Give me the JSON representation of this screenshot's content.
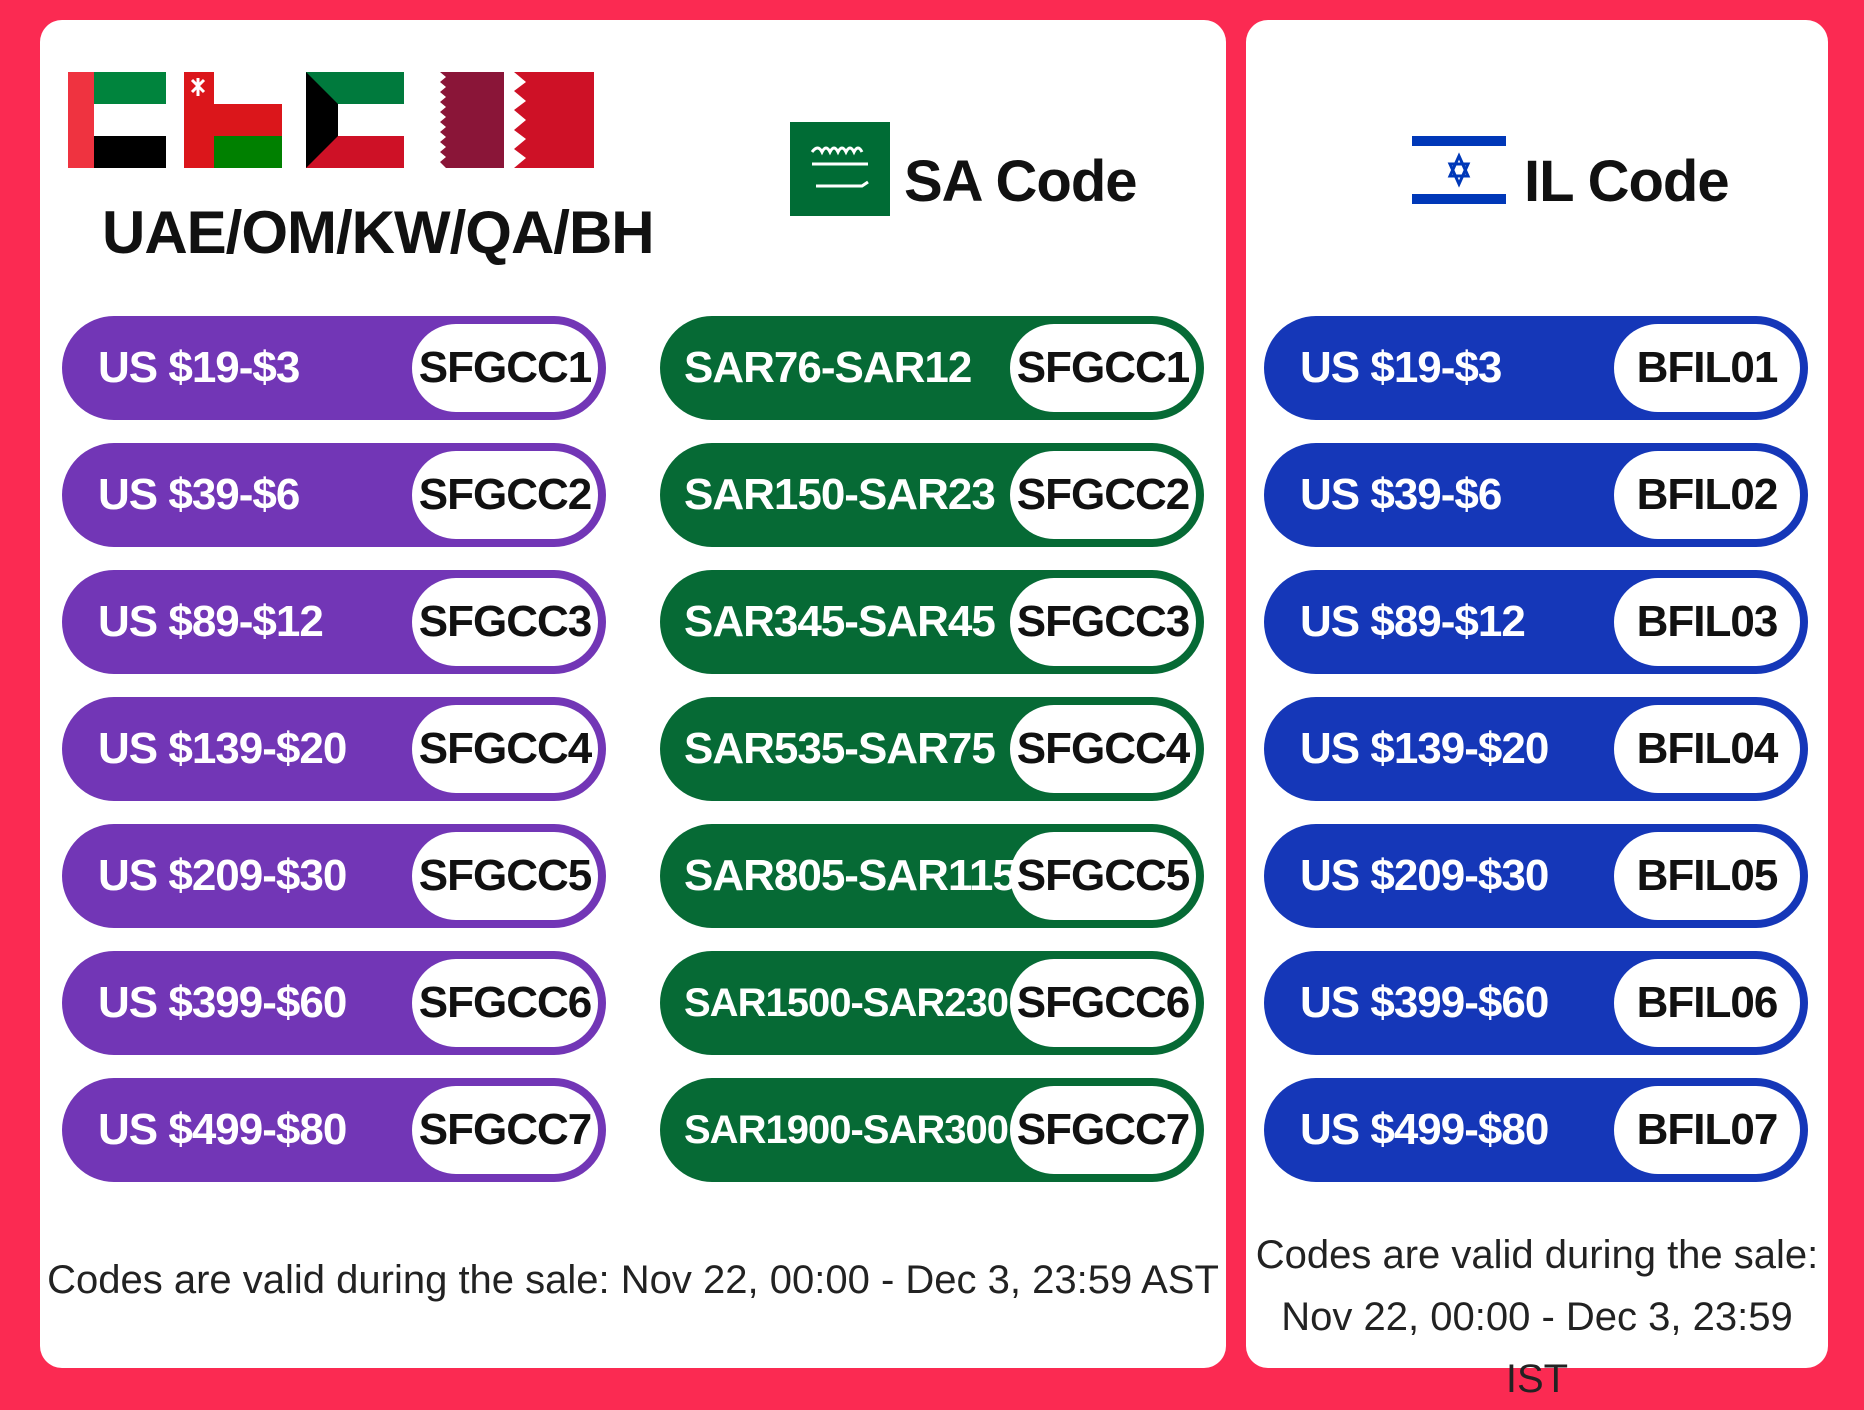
{
  "colors": {
    "background": "#fb2a52",
    "gcc_pill": "#7236b6",
    "sa_pill": "#066a35",
    "il_pill": "#1537b8"
  },
  "gcc": {
    "flags": [
      "uae-flag-icon",
      "oman-flag-icon",
      "kuwait-flag-icon",
      "qatar-flag-icon",
      "bahrain-flag-icon"
    ],
    "title": "UAE/OM/KW/QA/BH",
    "rows": [
      {
        "range": "US $19-$3",
        "code": "SFGCC1"
      },
      {
        "range": "US $39-$6",
        "code": "SFGCC2"
      },
      {
        "range": "US $89-$12",
        "code": "SFGCC3"
      },
      {
        "range": "US $139-$20",
        "code": "SFGCC4"
      },
      {
        "range": "US $209-$30",
        "code": "SFGCC5"
      },
      {
        "range": "US $399-$60",
        "code": "SFGCC6"
      },
      {
        "range": "US $499-$80",
        "code": "SFGCC7"
      }
    ],
    "note": "Codes are valid during the sale: Nov 22, 00:00 - Dec 3, 23:59 AST"
  },
  "sa": {
    "flag": "saudi-flag-icon",
    "title": "SA Code",
    "rows": [
      {
        "range": "SAR76-SAR12",
        "code": "SFGCC1"
      },
      {
        "range": "SAR150-SAR23",
        "code": "SFGCC2"
      },
      {
        "range": "SAR345-SAR45",
        "code": "SFGCC3"
      },
      {
        "range": "SAR535-SAR75",
        "code": "SFGCC4"
      },
      {
        "range": "SAR805-SAR115",
        "code": "SFGCC5"
      },
      {
        "range": "SAR1500-SAR230",
        "code": "SFGCC6"
      },
      {
        "range": "SAR1900-SAR300",
        "code": "SFGCC7"
      }
    ]
  },
  "il": {
    "flag": "israel-flag-icon",
    "title": "IL Code",
    "rows": [
      {
        "range": "US $19-$3",
        "code": "BFIL01"
      },
      {
        "range": "US $39-$6",
        "code": "BFIL02"
      },
      {
        "range": "US $89-$12",
        "code": "BFIL03"
      },
      {
        "range": "US $139-$20",
        "code": "BFIL04"
      },
      {
        "range": "US $209-$30",
        "code": "BFIL05"
      },
      {
        "range": "US $399-$60",
        "code": "BFIL06"
      },
      {
        "range": "US $499-$80",
        "code": "BFIL07"
      }
    ],
    "note_line1": "Codes are valid during the sale:",
    "note_line2": "Nov 22, 00:00 - Dec 3, 23:59 IST"
  }
}
